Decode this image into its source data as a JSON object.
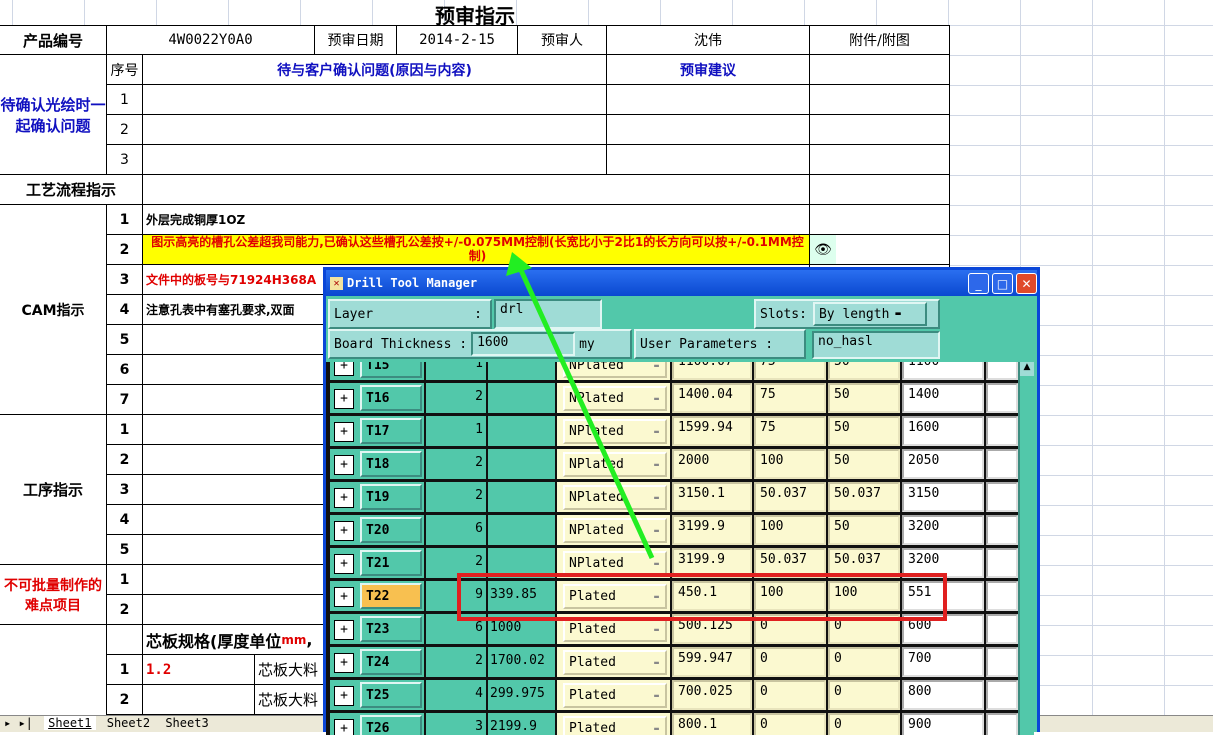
{
  "sheet": {
    "title": "预审指示",
    "header": {
      "product_no_label": "产品编号",
      "product_no": "4W0022Y0A0",
      "date_label": "预审日期",
      "date": "2014-2-15",
      "reviewer_label": "预审人",
      "reviewer": "沈伟",
      "attachment_label": "附件/附图"
    },
    "confirm": {
      "section": "待确认光绘时一起确认问题",
      "seq_label": "序号",
      "question_label": "待与客户确认问题(原因与内容)",
      "suggest_label": "预审建议",
      "rows": [
        "1",
        "2",
        "3"
      ]
    },
    "process_label": "工艺流程指示",
    "cam": {
      "section": "CAM指示",
      "rows": [
        {
          "n": "1",
          "text": "外层完成铜厚1OZ"
        },
        {
          "n": "2",
          "text": "图示高亮的槽孔公差超我司能力,已确认这些槽孔公差按+/-0.075MM控制(长宽比小于2比1的长方向可以按+/-0.1MM控制)"
        },
        {
          "n": "3",
          "text": "文件中的板号与71924H368A"
        },
        {
          "n": "4",
          "text": "注意孔表中有塞孔要求,双面"
        },
        {
          "n": "5",
          "text": ""
        },
        {
          "n": "6",
          "text": ""
        },
        {
          "n": "7",
          "text": ""
        }
      ]
    },
    "process_steps": {
      "section": "工序指示",
      "rows": [
        "1",
        "2",
        "3",
        "4",
        "5"
      ]
    },
    "difficult": {
      "section": "不可批量制作的难点项目",
      "rows": [
        "1",
        "2"
      ]
    },
    "core": {
      "label": "芯板规格(厚度单位",
      "unit": "mm",
      "comma": ",",
      "rows": [
        {
          "n": "1",
          "value": "1.2",
          "item": "芯板大料"
        },
        {
          "n": "2",
          "value": "",
          "item": "芯板大料"
        }
      ]
    },
    "sheet_tabs": [
      "Sheet1",
      "Sheet2",
      "Sheet3"
    ]
  },
  "dialog": {
    "title": "Drill Tool Manager",
    "layer_label": "Layer",
    "colon": ":",
    "layer_value": "drl",
    "slots_label": "Slots:",
    "slots_value": "By length",
    "thickness_label": "Board Thickness :",
    "thickness_value": "1600",
    "thickness_unit": "my",
    "user_params_label": "User Parameters :",
    "user_params_value": "no_hasl",
    "tools": [
      {
        "name": "T15",
        "count": "1",
        "size": "",
        "type": "NPlated",
        "v1": "1100.07",
        "v2": "75",
        "v3": "50",
        "v4": "1100"
      },
      {
        "name": "T16",
        "count": "2",
        "size": "",
        "type": "NPlated",
        "v1": "1400.04",
        "v2": "75",
        "v3": "50",
        "v4": "1400"
      },
      {
        "name": "T17",
        "count": "1",
        "size": "",
        "type": "NPlated",
        "v1": "1599.94",
        "v2": "75",
        "v3": "50",
        "v4": "1600"
      },
      {
        "name": "T18",
        "count": "2",
        "size": "",
        "type": "NPlated",
        "v1": "2000",
        "v2": "100",
        "v3": "50",
        "v4": "2050"
      },
      {
        "name": "T19",
        "count": "2",
        "size": "",
        "type": "NPlated",
        "v1": "3150.1",
        "v2": "50.037",
        "v3": "50.037",
        "v4": "3150"
      },
      {
        "name": "T20",
        "count": "6",
        "size": "",
        "type": "NPlated",
        "v1": "3199.9",
        "v2": "100",
        "v3": "50",
        "v4": "3200"
      },
      {
        "name": "T21",
        "count": "2",
        "size": "",
        "type": "NPlated",
        "v1": "3199.9",
        "v2": "50.037",
        "v3": "50.037",
        "v4": "3200"
      },
      {
        "name": "T22",
        "count": "9",
        "size": "339.85",
        "type": "Plated",
        "v1": "450.1",
        "v2": "100",
        "v3": "100",
        "v4": "551",
        "selected": true
      },
      {
        "name": "T23",
        "count": "6",
        "size": "1000",
        "type": "Plated",
        "v1": "500.125",
        "v2": "0",
        "v3": "0",
        "v4": "600"
      },
      {
        "name": "T24",
        "count": "2",
        "size": "1700.02",
        "type": "Plated",
        "v1": "599.947",
        "v2": "0",
        "v3": "0",
        "v4": "700"
      },
      {
        "name": "T25",
        "count": "4",
        "size": "299.975",
        "type": "Plated",
        "v1": "700.025",
        "v2": "0",
        "v3": "0",
        "v4": "800"
      },
      {
        "name": "T26",
        "count": "3",
        "size": "2199.9",
        "type": "Plated",
        "v1": "800.1",
        "v2": "0",
        "v3": "0",
        "v4": "900"
      }
    ]
  },
  "colors": {
    "highlight_row": "#ffff00",
    "annotation_box": "#e02020",
    "annotation_arrow": "#22ee22",
    "selected_tool": "#f8c050"
  }
}
